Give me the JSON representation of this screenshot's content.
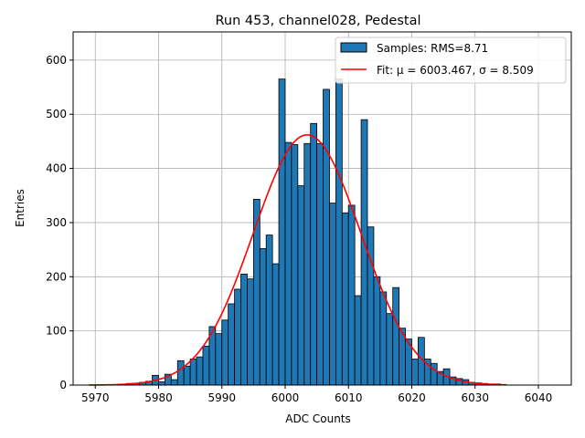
{
  "chart_data": {
    "type": "bar",
    "title": "Run 453, channel028, Pedestal",
    "xlabel": "ADC Counts",
    "ylabel": "Entries",
    "xlim": [
      5966.5,
      6045.2
    ],
    "ylim": [
      0,
      652
    ],
    "xticks": [
      5970,
      5980,
      5990,
      6000,
      6010,
      6020,
      6030,
      6040
    ],
    "yticks": [
      0,
      100,
      200,
      300,
      400,
      500,
      600
    ],
    "grid": true,
    "legend_position": "top-right",
    "bin_width": 1,
    "histogram": {
      "name": "Samples: RMS=8.71",
      "color": "#1f77b4",
      "bins": [
        5969,
        5970,
        5971,
        5972,
        5973,
        5974,
        5975,
        5976,
        5977,
        5978,
        5979,
        5980,
        5981,
        5982,
        5983,
        5984,
        5985,
        5986,
        5987,
        5988,
        5989,
        5990,
        5991,
        5992,
        5993,
        5994,
        5995,
        5996,
        5997,
        5998,
        5999,
        6000,
        6001,
        6002,
        6003,
        6004,
        6005,
        6006,
        6007,
        6008,
        6009,
        6010,
        6011,
        6012,
        6013,
        6014,
        6015,
        6016,
        6017,
        6018,
        6019,
        6020,
        6021,
        6022,
        6023,
        6024,
        6025,
        6026,
        6027,
        6028,
        6029,
        6030,
        6031,
        6032,
        6033,
        6034
      ],
      "counts": [
        0,
        0,
        0,
        0,
        0,
        0,
        3,
        3,
        5,
        7,
        18,
        6,
        20,
        10,
        45,
        35,
        48,
        52,
        72,
        108,
        95,
        120,
        150,
        177,
        205,
        196,
        343,
        252,
        277,
        224,
        565,
        448,
        444,
        368,
        446,
        483,
        446,
        546,
        336,
        565,
        318,
        332,
        165,
        490,
        292,
        200,
        172,
        132,
        180,
        105,
        85,
        48,
        88,
        48,
        40,
        25,
        30,
        15,
        12,
        10,
        5,
        4,
        3,
        2,
        2,
        0
      ]
    },
    "fit": {
      "name": "Fit: μ = 6003.467, σ = 8.509",
      "color": "#ff0000",
      "mu": 6003.467,
      "sigma": 8.509,
      "amplitude": 462,
      "x_range": [
        5969,
        6035
      ]
    },
    "series": [
      {
        "name": "Samples: RMS=8.71"
      },
      {
        "name": "Fit: μ = 6003.467, σ = 8.509"
      }
    ]
  }
}
